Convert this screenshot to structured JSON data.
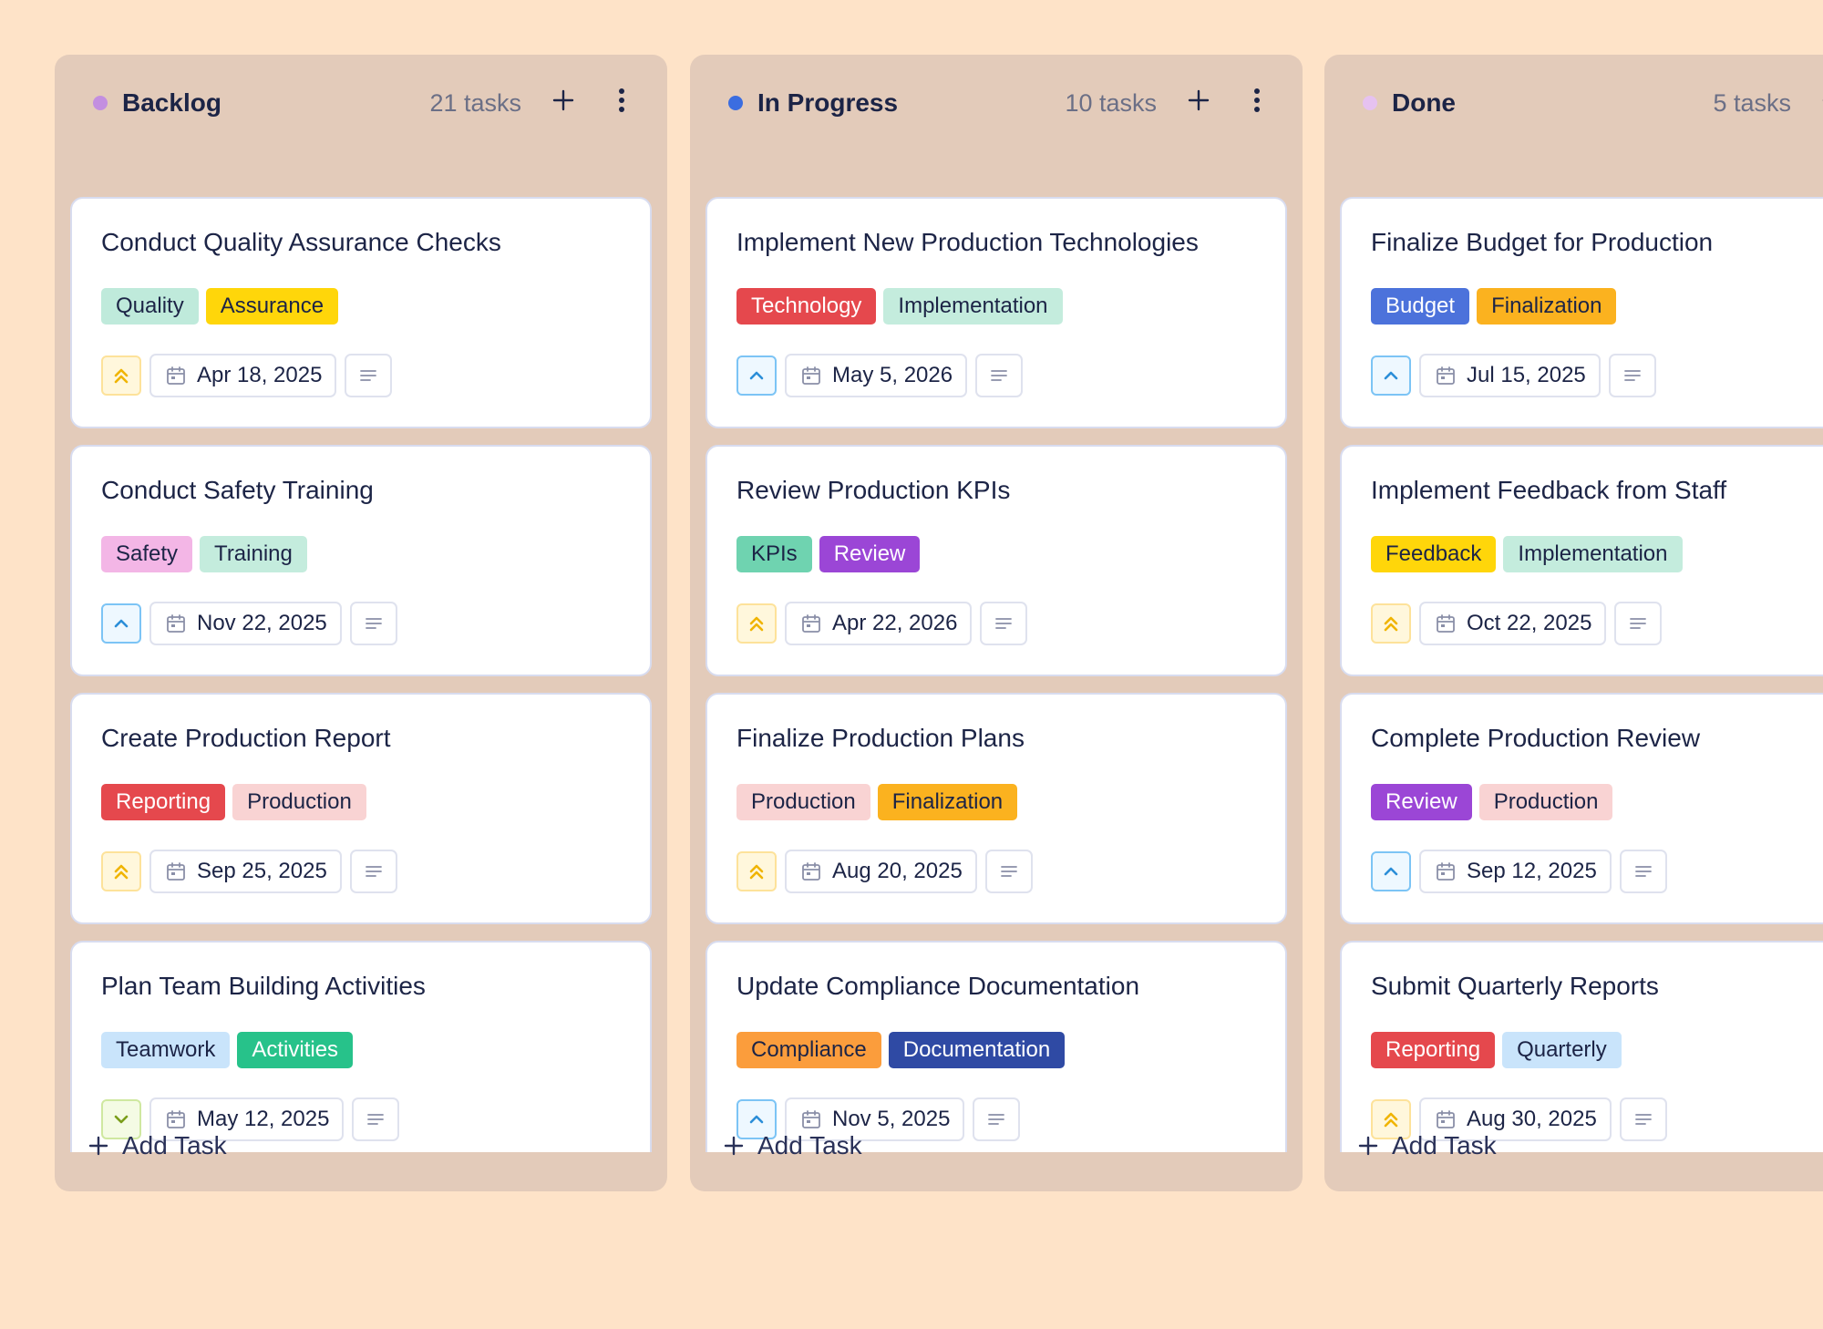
{
  "columns": [
    {
      "title": "Backlog",
      "count": "21 tasks",
      "dot_color": "#c38fe0",
      "add_label": "Add Task",
      "cards": [
        {
          "title": "Conduct Quality Assurance Checks",
          "tags": [
            {
              "label": "Quality",
              "bg": "#bfeadb",
              "fg": "#1c2446"
            },
            {
              "label": "Assurance",
              "bg": "#ffd60a",
              "fg": "#1c2446"
            }
          ],
          "priority": "high",
          "date": "Apr 18, 2025"
        },
        {
          "title": "Conduct Safety Training",
          "tags": [
            {
              "label": "Safety",
              "bg": "#f3b6e6",
              "fg": "#1c2446"
            },
            {
              "label": "Training",
              "bg": "#c4ecdd",
              "fg": "#1c2446"
            }
          ],
          "priority": "medium",
          "date": "Nov 22, 2025"
        },
        {
          "title": "Create Production Report",
          "tags": [
            {
              "label": "Reporting",
              "bg": "#e5484d",
              "fg": "#ffffff"
            },
            {
              "label": "Production",
              "bg": "#f9d3d3",
              "fg": "#1c2446"
            }
          ],
          "priority": "high",
          "date": "Sep 25, 2025"
        },
        {
          "title": "Plan Team Building Activities",
          "tags": [
            {
              "label": "Teamwork",
              "bg": "#c9e4fb",
              "fg": "#1c2446"
            },
            {
              "label": "Activities",
              "bg": "#27c28a",
              "fg": "#ffffff"
            }
          ],
          "priority": "low",
          "date": "May 12, 2025"
        }
      ]
    },
    {
      "title": "In Progress",
      "count": "10 tasks",
      "dot_color": "#3b6de0",
      "add_label": "Add Task",
      "cards": [
        {
          "title": "Implement New Production Technologies",
          "tags": [
            {
              "label": "Technology",
              "bg": "#e5484d",
              "fg": "#ffffff"
            },
            {
              "label": "Implementation",
              "bg": "#c4ecdd",
              "fg": "#1c2446"
            }
          ],
          "priority": "medium",
          "date": "May 5, 2026"
        },
        {
          "title": "Review Production KPIs",
          "tags": [
            {
              "label": "KPIs",
              "bg": "#6fd3b0",
              "fg": "#1c2446"
            },
            {
              "label": "Review",
              "bg": "#9b46d6",
              "fg": "#ffffff"
            }
          ],
          "priority": "high",
          "date": "Apr 22, 2026"
        },
        {
          "title": "Finalize Production Plans",
          "tags": [
            {
              "label": "Production",
              "bg": "#f9d3d3",
              "fg": "#1c2446"
            },
            {
              "label": "Finalization",
              "bg": "#fbb21f",
              "fg": "#1c2446"
            }
          ],
          "priority": "high",
          "date": "Aug 20, 2025"
        },
        {
          "title": "Update Compliance Documentation",
          "tags": [
            {
              "label": "Compliance",
              "bg": "#fb9d3c",
              "fg": "#1c2446"
            },
            {
              "label": "Documentation",
              "bg": "#2f4aa4",
              "fg": "#ffffff"
            }
          ],
          "priority": "medium",
          "date": "Nov 5, 2025"
        }
      ]
    },
    {
      "title": "Done",
      "count": "5 tasks",
      "dot_color": "#e6c2f0",
      "add_label": "Add Task",
      "cards": [
        {
          "title": "Finalize Budget for Production",
          "tags": [
            {
              "label": "Budget",
              "bg": "#4c72db",
              "fg": "#ffffff"
            },
            {
              "label": "Finalization",
              "bg": "#fbb21f",
              "fg": "#1c2446"
            }
          ],
          "priority": "medium",
          "date": "Jul 15, 2025"
        },
        {
          "title": "Implement Feedback from Staff",
          "tags": [
            {
              "label": "Feedback",
              "bg": "#ffd60a",
              "fg": "#1c2446"
            },
            {
              "label": "Implementation",
              "bg": "#c4ecdd",
              "fg": "#1c2446"
            }
          ],
          "priority": "high",
          "date": "Oct 22, 2025"
        },
        {
          "title": "Complete Production Review",
          "tags": [
            {
              "label": "Review",
              "bg": "#9b46d6",
              "fg": "#ffffff"
            },
            {
              "label": "Production",
              "bg": "#f9d3d3",
              "fg": "#1c2446"
            }
          ],
          "priority": "medium",
          "date": "Sep 12, 2025"
        },
        {
          "title": "Submit Quarterly Reports",
          "tags": [
            {
              "label": "Reporting",
              "bg": "#e5484d",
              "fg": "#ffffff"
            },
            {
              "label": "Quarterly",
              "bg": "#c9e4fb",
              "fg": "#1c2446"
            }
          ],
          "priority": "high",
          "date": "Aug 30, 2025"
        }
      ]
    }
  ],
  "icons": {
    "column_add": "plus-icon",
    "column_menu": "more-vertical-icon",
    "priority_high": "double-chevron-up-icon",
    "priority_medium": "chevron-up-icon",
    "priority_low": "chevron-down-icon",
    "date": "calendar-icon",
    "notes": "description-icon",
    "add_task": "plus-icon"
  }
}
